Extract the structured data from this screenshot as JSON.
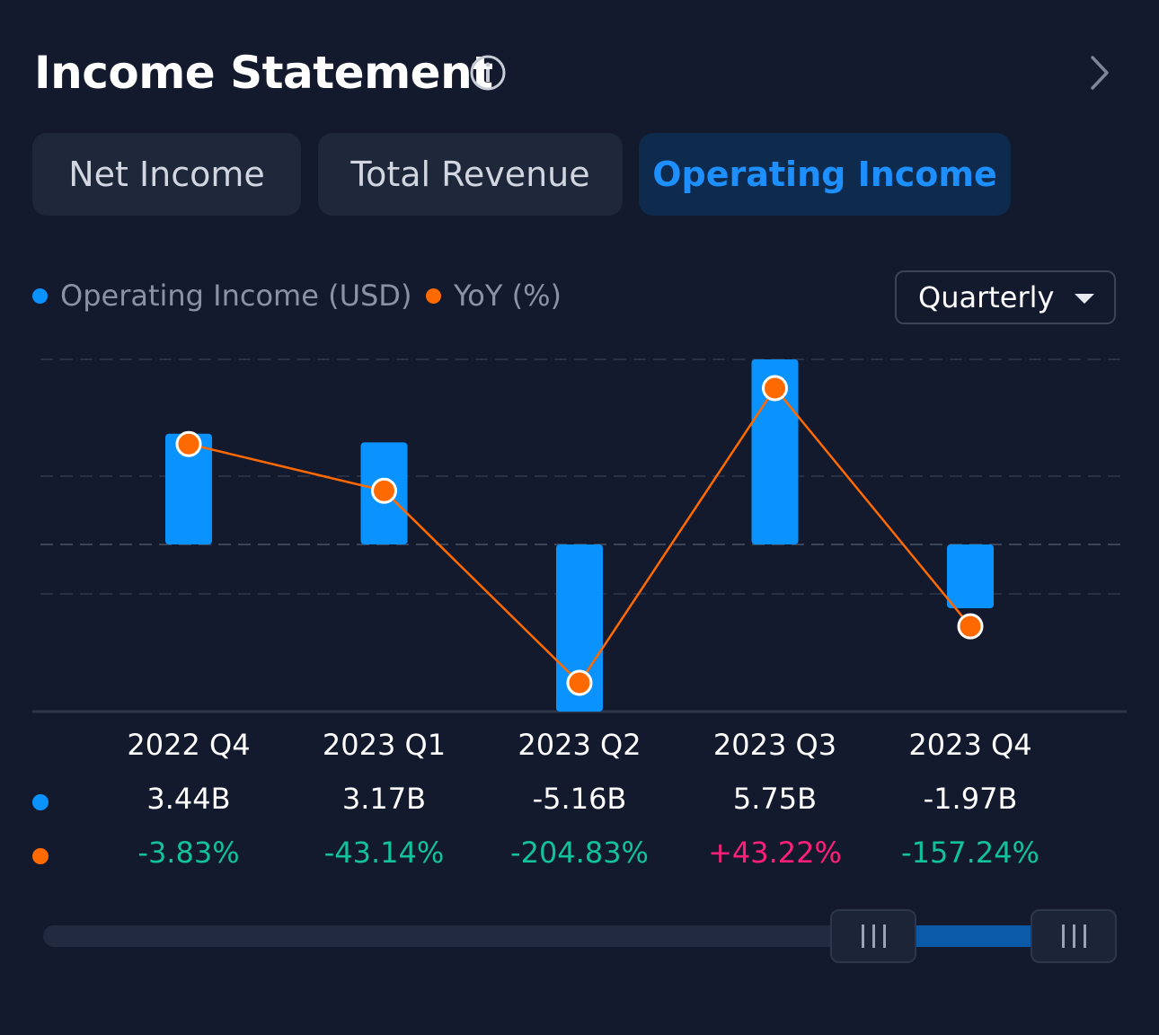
{
  "header": {
    "title": "Income Statement",
    "info_icon": "info-circle-icon",
    "nav_icon": "chevron-right-icon"
  },
  "tabs": [
    {
      "label": "Net Income",
      "active": false
    },
    {
      "label": "Total Revenue",
      "active": false
    },
    {
      "label": "Operating Income",
      "active": true
    }
  ],
  "legend": {
    "series1": {
      "label": "Operating Income (USD)",
      "color": "#0a93ff"
    },
    "series2": {
      "label": "YoY (%)",
      "color": "#ff6a00"
    }
  },
  "period_select": {
    "value": "Quarterly"
  },
  "colors": {
    "positive": "#12c29a",
    "negative_text": "#ff1f78",
    "accent": "#1e8fff",
    "background": "#131a2e"
  },
  "chart_data": {
    "type": "bar",
    "categories": [
      "2022 Q4",
      "2023 Q1",
      "2023 Q2",
      "2023 Q3",
      "2023 Q4"
    ],
    "series": [
      {
        "name": "Operating Income (USD)",
        "type": "bar",
        "values": [
          3.44,
          3.17,
          -5.16,
          5.75,
          -1.97
        ],
        "labels": [
          "3.44B",
          "3.17B",
          "-5.16B",
          "5.75B",
          "-1.97B"
        ]
      },
      {
        "name": "YoY (%)",
        "type": "line",
        "values": [
          -3.83,
          -43.14,
          -204.83,
          43.22,
          -157.24
        ],
        "labels": [
          "-3.83%",
          "-43.14%",
          "-204.83%",
          "+43.22%",
          "-157.24%"
        ]
      }
    ],
    "grid": true,
    "legend": "top-left"
  },
  "scrollbar": {
    "window_start": 0.77,
    "window_end": 1.0
  }
}
